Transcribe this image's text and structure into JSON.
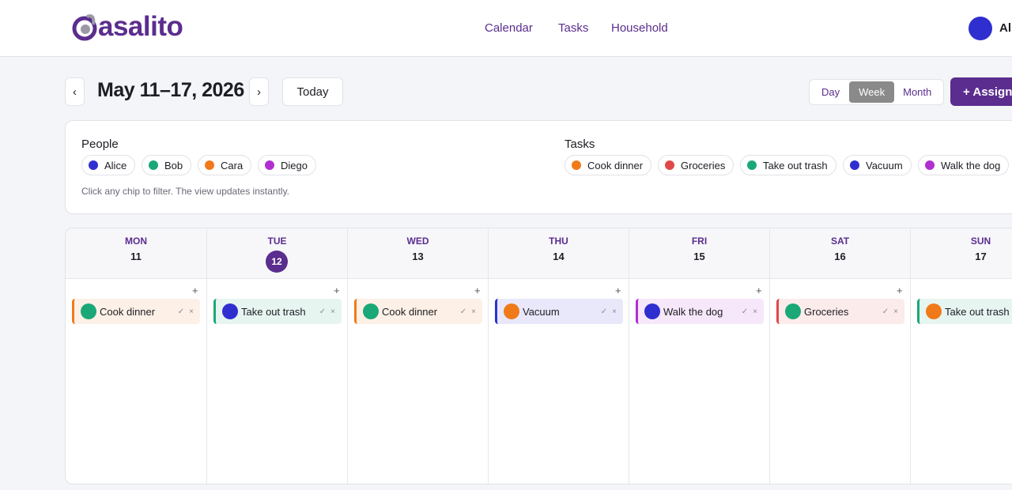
{
  "header": {
    "logo": "asalito",
    "nav": [
      "Calendar",
      "Tasks",
      "Household"
    ],
    "user": {
      "name": "Ali",
      "avatar_color": "#2f2fd0"
    }
  },
  "toolbar": {
    "prev": "‹",
    "range": "May 11–17, 2026",
    "next": "›",
    "today": "Today",
    "views": [
      {
        "label": "Day",
        "active": false
      },
      {
        "label": "Week",
        "active": true
      },
      {
        "label": "Month",
        "active": false
      }
    ],
    "assign": "+ Assign"
  },
  "filters": {
    "people": {
      "title": "People",
      "chips": [
        {
          "label": "Alice",
          "color": "#2f2fd0"
        },
        {
          "label": "Bob",
          "color": "#1aa878"
        },
        {
          "label": "Cara",
          "color": "#f07a1a"
        },
        {
          "label": "Diego",
          "color": "#b02fd0"
        }
      ]
    },
    "tasks": {
      "title": "Tasks",
      "chips": [
        {
          "label": "Cook dinner",
          "color": "#f07a1a"
        },
        {
          "label": "Groceries",
          "color": "#e04848"
        },
        {
          "label": "Take out trash",
          "color": "#1aa878"
        },
        {
          "label": "Vacuum",
          "color": "#2f2fd0"
        },
        {
          "label": "Walk the dog",
          "color": "#b02fd0"
        }
      ]
    },
    "hint": "Click any chip to filter. The view updates instantly."
  },
  "calendar": {
    "add": "+",
    "done": "✓",
    "remove": "×",
    "days": [
      {
        "weekday": "MON",
        "date": 11,
        "today": false,
        "events": [
          {
            "task": "Cook dinner",
            "color": "#f07a1a",
            "avatar_color": "#1aa878"
          }
        ]
      },
      {
        "weekday": "TUE",
        "date": 12,
        "today": true,
        "events": [
          {
            "task": "Take out trash",
            "color": "#1aa878",
            "avatar_color": "#2f2fd0"
          }
        ]
      },
      {
        "weekday": "WED",
        "date": 13,
        "today": false,
        "events": [
          {
            "task": "Cook dinner",
            "color": "#f07a1a",
            "avatar_color": "#1aa878"
          }
        ]
      },
      {
        "weekday": "THU",
        "date": 14,
        "today": false,
        "events": [
          {
            "task": "Vacuum",
            "color": "#2f2fd0",
            "avatar_color": "#f07a1a"
          }
        ]
      },
      {
        "weekday": "FRI",
        "date": 15,
        "today": false,
        "events": [
          {
            "task": "Walk the dog",
            "color": "#b02fd0",
            "avatar_color": "#2f2fd0"
          }
        ]
      },
      {
        "weekday": "SAT",
        "date": 16,
        "today": false,
        "events": [
          {
            "task": "Groceries",
            "color": "#e04848",
            "avatar_color": "#1aa878"
          }
        ]
      },
      {
        "weekday": "SUN",
        "date": 17,
        "today": false,
        "events": [
          {
            "task": "Take out trash",
            "color": "#1aa878",
            "avatar_color": "#f07a1a"
          }
        ]
      }
    ]
  }
}
